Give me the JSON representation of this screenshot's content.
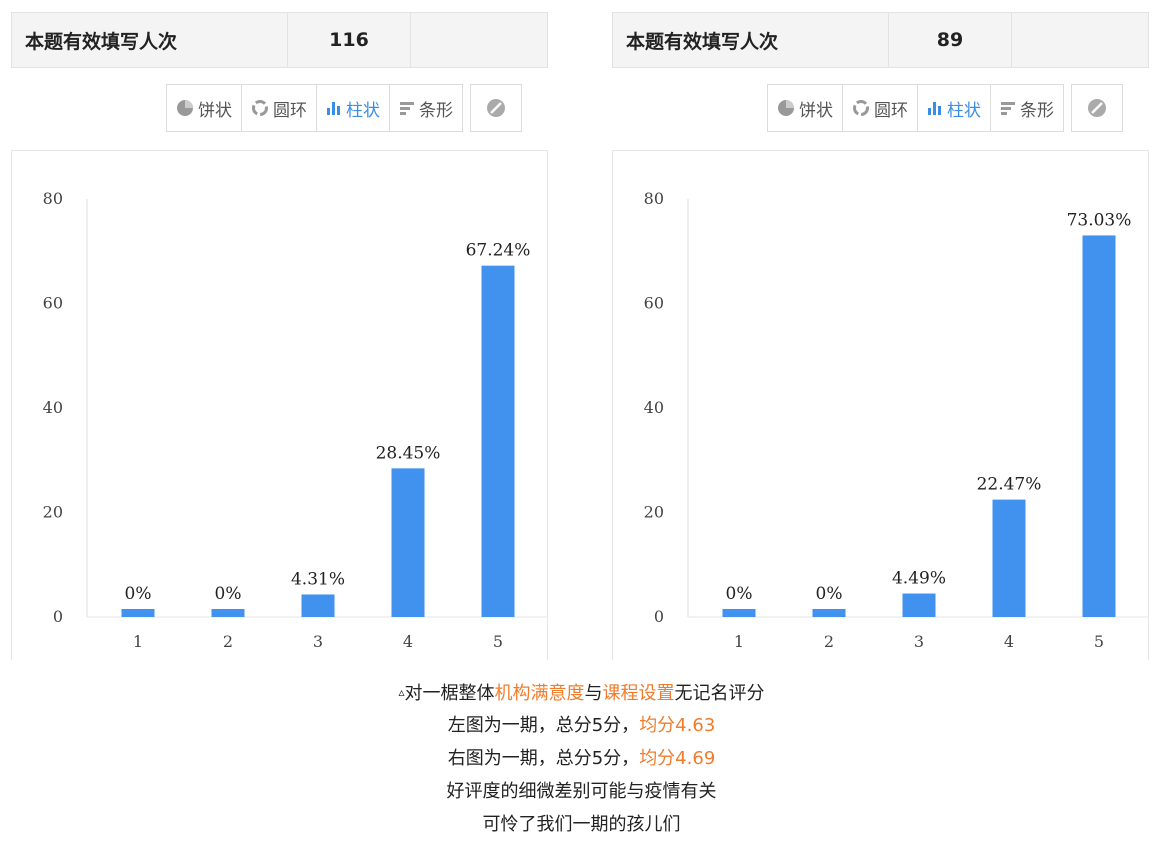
{
  "panels": [
    {
      "count_label": "本题有效填写人次",
      "count_value": "116",
      "toolbar": [
        "饼状",
        "圆环",
        "柱状",
        "条形"
      ]
    },
    {
      "count_label": "本题有效填写人次",
      "count_value": "89",
      "toolbar": [
        "饼状",
        "圆环",
        "柱状",
        "条形"
      ]
    }
  ],
  "chart_data": [
    {
      "type": "bar",
      "categories": [
        "1",
        "2",
        "3",
        "4",
        "5"
      ],
      "values": [
        0,
        0,
        4.31,
        28.45,
        67.24
      ],
      "data_labels": [
        "0%",
        "0%",
        "4.31%",
        "28.45%",
        "67.24%"
      ],
      "yticks": [
        "0",
        "20",
        "40",
        "60",
        "80"
      ],
      "ylim": [
        0,
        80
      ],
      "grid": false,
      "bar_color": "#4192ee"
    },
    {
      "type": "bar",
      "categories": [
        "1",
        "2",
        "3",
        "4",
        "5"
      ],
      "values": [
        0,
        0,
        4.49,
        22.47,
        73.03
      ],
      "data_labels": [
        "0%",
        "0%",
        "4.49%",
        "22.47%",
        "73.03%"
      ],
      "yticks": [
        "0",
        "20",
        "40",
        "60",
        "80"
      ],
      "ylim": [
        0,
        80
      ],
      "grid": false,
      "bar_color": "#4192ee"
    }
  ],
  "caption": {
    "line1_marker": "▵",
    "line1_a": "对一椐整体",
    "line1_hl1": "机构满意度",
    "line1_b": "与",
    "line1_hl2": "课程设置",
    "line1_c": "无记名评分",
    "line2_a": "左图为一期，总分5分，",
    "line2_hl": "均分4.63",
    "line3_a": "右图为一期，总分5分，",
    "line3_hl": "均分4.69",
    "line4": "好评度的细微差别可能与疫情有关",
    "line5": "可怜了我们一期的孩儿们"
  }
}
